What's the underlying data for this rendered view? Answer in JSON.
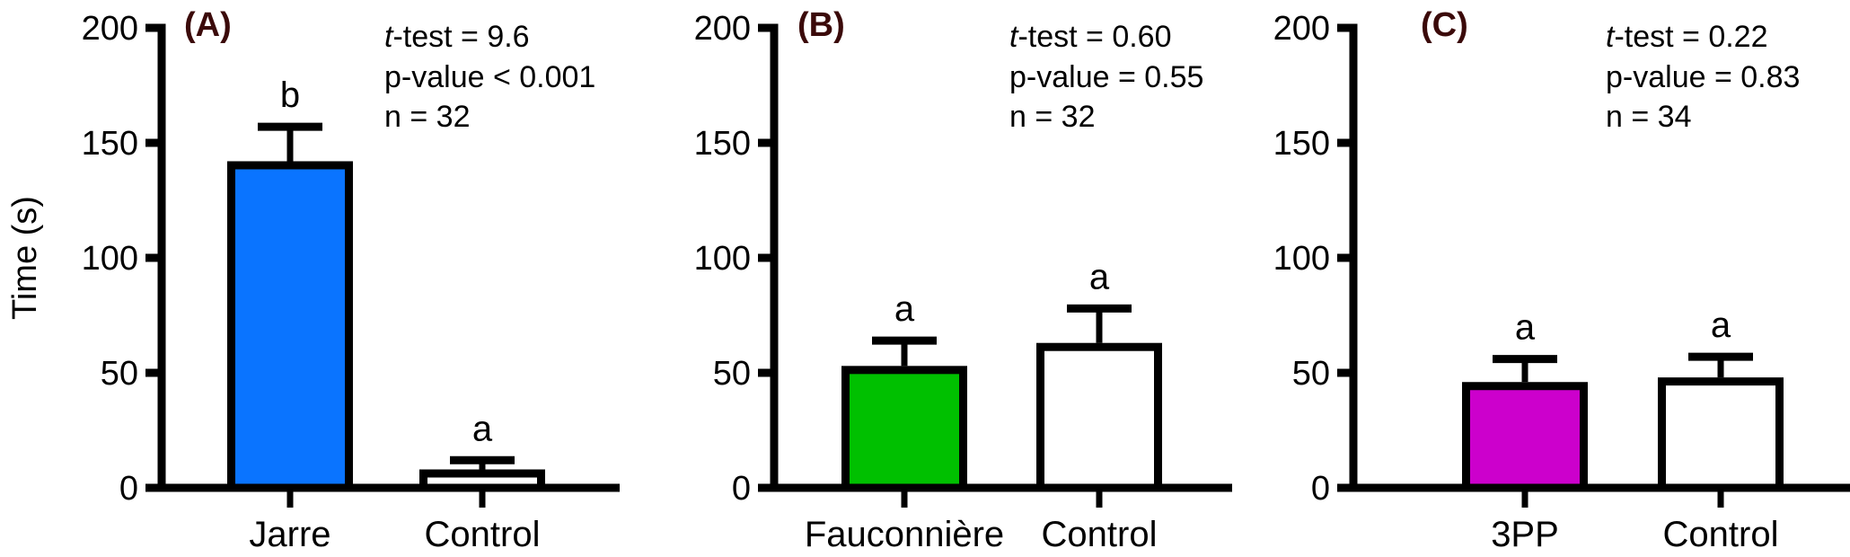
{
  "chart_data": [
    {
      "type": "bar",
      "panel": "(A)",
      "categories": [
        "Jarre",
        "Control"
      ],
      "values": [
        142,
        8
      ],
      "error_upper": [
        157,
        12
      ],
      "sig_letters": [
        "b",
        "a"
      ],
      "colors": [
        "#0a74ff",
        "#ffffff"
      ],
      "ylabel": "Time (s)",
      "ylim": [
        0,
        200
      ],
      "yticks": [
        0,
        50,
        100,
        150,
        200
      ],
      "stats": {
        "t_prefix": "t",
        "t_text": "-test = 9.6",
        "p_text": "p-value < 0.001",
        "n_text": "n = 32"
      }
    },
    {
      "type": "bar",
      "panel": "(B)",
      "categories": [
        "Fauconnière",
        "Control"
      ],
      "values": [
        53,
        63
      ],
      "error_upper": [
        64,
        78
      ],
      "sig_letters": [
        "a",
        "a"
      ],
      "colors": [
        "#00c000",
        "#ffffff"
      ],
      "ylabel": "",
      "ylim": [
        0,
        200
      ],
      "yticks": [
        0,
        50,
        100,
        150,
        200
      ],
      "stats": {
        "t_prefix": "t",
        "t_text": "-test = 0.60",
        "p_text": "p-value = 0.55",
        "n_text": "n = 32"
      }
    },
    {
      "type": "bar",
      "panel": "(C)",
      "categories": [
        "3PP",
        "Control"
      ],
      "values": [
        46,
        48
      ],
      "error_upper": [
        56,
        57
      ],
      "sig_letters": [
        "a",
        "a"
      ],
      "colors": [
        "#cc00cc",
        "#ffffff"
      ],
      "ylabel": "",
      "ylim": [
        0,
        200
      ],
      "yticks": [
        0,
        50,
        100,
        150,
        200
      ],
      "stats": {
        "t_prefix": "t",
        "t_text": "-test = 0.22",
        "p_text": "p-value = 0.83",
        "n_text": "n = 34"
      }
    }
  ]
}
